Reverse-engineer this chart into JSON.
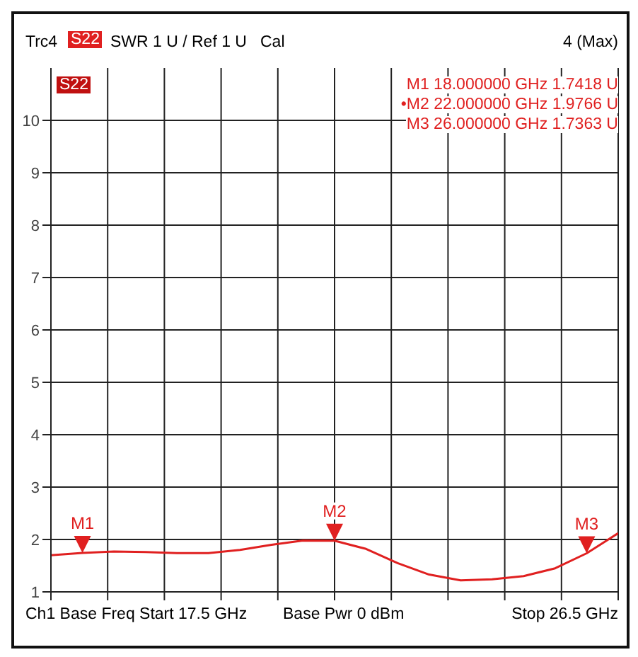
{
  "chart_data": {
    "type": "line",
    "categories": [
      null,
      null,
      null,
      null,
      null,
      null,
      null,
      null,
      null,
      null,
      null,
      null,
      null,
      null,
      null,
      null,
      null,
      null,
      null
    ],
    "series": [
      {
        "color": "#e02020",
        "values": [
          1.7,
          1.7418,
          1.77,
          1.76,
          1.74,
          1.74,
          1.8,
          1.9,
          1.98,
          1.9766,
          1.82,
          1.55,
          1.33,
          1.22,
          1.24,
          1.3,
          1.45,
          1.7363,
          2.12
        ]
      }
    ],
    "ylim": [
      1,
      11
    ],
    "yticks": [
      1,
      2,
      3,
      4,
      5,
      6,
      7,
      8,
      9,
      10
    ],
    "grid": true,
    "marker": "none",
    "line_style": "solid",
    "annotations": [
      "Trc4",
      "S22",
      "SWR 1 U / Ref 1 U",
      "Cal",
      "4 (Max)",
      "S22",
      "M1 18.000000 GHz 1.7418 U",
      "•M2 22.000000 GHz 1.9766 U",
      "M3 26.000000 GHz 1.7363 U",
      "Ch1 Base Freq Start 17.5 GHz",
      "Base Pwr 0 dBm",
      "Stop 26.5 GHz",
      {
        "text": "M1",
        "y": 1.7418
      },
      {
        "text": "M2",
        "y": 1.9766
      },
      {
        "text": "M3",
        "y": 1.7363
      }
    ]
  }
}
